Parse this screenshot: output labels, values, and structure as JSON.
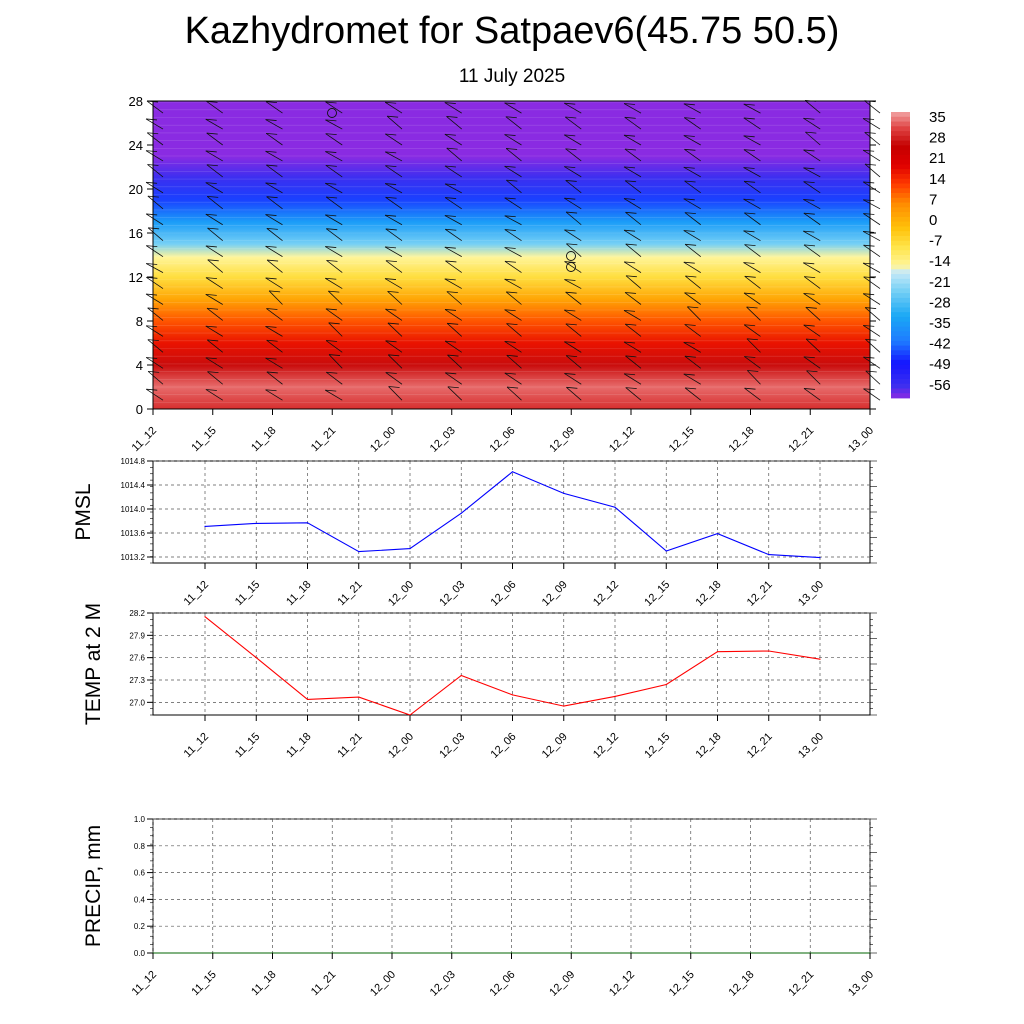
{
  "title": "Kazhydromet for Satpaev6(45.75 50.5)",
  "subtitle": "11 July 2025",
  "chart_data": [
    {
      "type": "heatmap",
      "name": "upper",
      "x_ticks": [
        "11_12",
        "11_15",
        "11_18",
        "11_21",
        "12_00",
        "12_03",
        "12_06",
        "12_09",
        "12_12",
        "12_15",
        "12_18",
        "12_21",
        "13_00"
      ],
      "y_ticks": [
        0,
        4,
        8,
        12,
        16,
        20,
        24,
        28
      ],
      "ylim": [
        0,
        28
      ],
      "colorbar_labels": [
        "35",
        "28",
        "21",
        "14",
        "7",
        "0",
        "-7",
        "-14",
        "-21",
        "-28",
        "-35",
        "-42",
        "-49",
        "-56"
      ],
      "levels": [
        {
          "y": 0,
          "v": 28
        },
        {
          "y": 2,
          "v": 32
        },
        {
          "y": 4,
          "v": 25
        },
        {
          "y": 6,
          "v": 16
        },
        {
          "y": 8,
          "v": 10
        },
        {
          "y": 10,
          "v": 2
        },
        {
          "y": 12,
          "v": -7
        },
        {
          "y": 13.8,
          "v": -14
        },
        {
          "y": 15,
          "v": -22
        },
        {
          "y": 17,
          "v": -32
        },
        {
          "y": 19,
          "v": -42
        },
        {
          "y": 21,
          "v": -52
        },
        {
          "y": 23,
          "v": -56
        },
        {
          "y": 28,
          "v": -56
        }
      ]
    },
    {
      "type": "line",
      "ylabel": "PMSL",
      "x": [
        "11_12",
        "11_15",
        "11_18",
        "11_21",
        "12_00",
        "12_03",
        "12_06",
        "12_09",
        "12_12",
        "12_15",
        "12_18",
        "12_21",
        "13_00"
      ],
      "values": [
        1013.71,
        1013.76,
        1013.77,
        1013.29,
        1013.34,
        1013.93,
        1014.62,
        1014.26,
        1014.03,
        1013.3,
        1013.59,
        1013.24,
        1013.19
      ],
      "ylim": [
        1013.1,
        1014.8
      ],
      "y_ticks": [
        "1013.2",
        "1013.6",
        "1014.0",
        "1014.4",
        "1014.8"
      ],
      "color": "#0000ff",
      "grid": true
    },
    {
      "type": "line",
      "ylabel": "TEMP at 2 M",
      "x": [
        "11_12",
        "11_15",
        "11_18",
        "11_21",
        "12_00",
        "12_03",
        "12_06",
        "12_09",
        "12_12",
        "12_15",
        "12_18",
        "12_21",
        "13_00"
      ],
      "values": [
        28.15,
        27.6,
        27.04,
        27.07,
        26.83,
        27.36,
        27.1,
        26.95,
        27.08,
        27.24,
        27.68,
        27.69,
        27.58
      ],
      "ylim": [
        26.83,
        28.2
      ],
      "y_ticks": [
        "27.0",
        "27.3",
        "27.6",
        "27.9",
        "28.2"
      ],
      "color": "#ff0000",
      "grid": true
    },
    {
      "type": "line",
      "ylabel": "PRECIP, mm",
      "x": [
        "11_12",
        "11_15",
        "11_18",
        "11_21",
        "12_00",
        "12_03",
        "12_06",
        "12_09",
        "12_12",
        "12_15",
        "12_18",
        "12_21",
        "13_00"
      ],
      "values": [
        0,
        0,
        0,
        0,
        0,
        0,
        0,
        0,
        0,
        0,
        0,
        0,
        0
      ],
      "ylim": [
        0,
        1
      ],
      "y_ticks": [
        "0.0",
        "0.2",
        "0.4",
        "0.6",
        "0.8",
        "1.0"
      ],
      "x_ticks": [
        "11_12",
        "11_15",
        "11_18",
        "11_21",
        "12_00",
        "12_03",
        "12_06",
        "12_09",
        "12_12",
        "12_15",
        "12_18",
        "12_21",
        "13_00"
      ],
      "color": "#006400",
      "grid": true
    }
  ]
}
